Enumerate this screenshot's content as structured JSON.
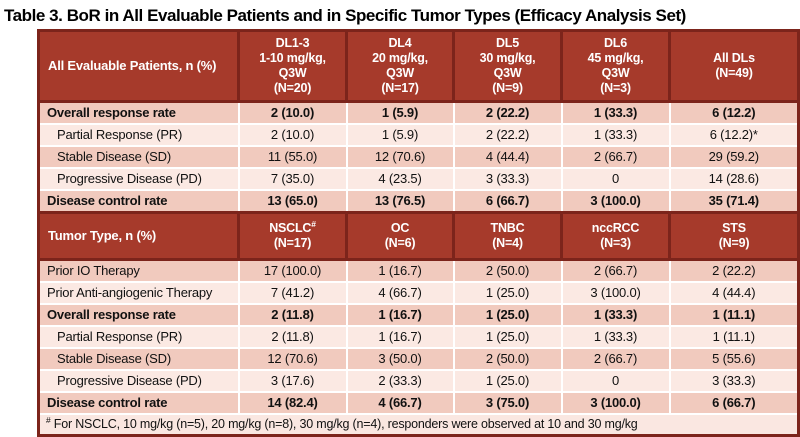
{
  "page": {
    "title": "Table 3. BoR in All Evaluable Patients and in Specific Tumor Types (Efficacy Analysis Set)"
  },
  "colors": {
    "header_red": "#A63A2B",
    "dark_border": "#7C241B",
    "band_dark": "#F1CABE",
    "band_light": "#FBE9E3",
    "footnote_bg": "#FAE7E1",
    "separator_white": "#FFFFFF",
    "header_text": "#FFFFFF",
    "body_text": "#111111"
  },
  "table": {
    "sections": [
      {
        "header_label": "All Evaluable Patients, n (%)",
        "columns": [
          {
            "lines": [
              "DL1-3",
              "1-10 mg/kg,",
              "Q3W",
              "(N=20)"
            ]
          },
          {
            "lines": [
              "DL4",
              "20 mg/kg,",
              "Q3W",
              "(N=17)"
            ]
          },
          {
            "lines": [
              "DL5",
              "30 mg/kg,",
              "Q3W",
              "(N=9)"
            ]
          },
          {
            "lines": [
              "DL6",
              "45 mg/kg,",
              "Q3W",
              "(N=3)"
            ]
          },
          {
            "lines": [
              "All DLs",
              "(N=49)"
            ]
          }
        ],
        "rows": [
          {
            "label": "Overall response rate",
            "bold": true,
            "indent": false,
            "cells": [
              "2 (10.0)",
              "1 (5.9)",
              "2 (22.2)",
              "1 (33.3)",
              "6 (12.2)"
            ]
          },
          {
            "label": "Partial Response (PR)",
            "bold": false,
            "indent": true,
            "cells": [
              "2 (10.0)",
              "1 (5.9)",
              "2 (22.2)",
              "1 (33.3)",
              "6 (12.2)*"
            ]
          },
          {
            "label": "Stable Disease (SD)",
            "bold": false,
            "indent": true,
            "cells": [
              "11 (55.0)",
              "12 (70.6)",
              "4 (44.4)",
              "2 (66.7)",
              "29 (59.2)"
            ]
          },
          {
            "label": "Progressive Disease (PD)",
            "bold": false,
            "indent": true,
            "cells": [
              "7 (35.0)",
              "4 (23.5)",
              "3 (33.3)",
              "0",
              "14 (28.6)"
            ]
          },
          {
            "label": "Disease control rate",
            "bold": true,
            "indent": false,
            "cells": [
              "13 (65.0)",
              "13 (76.5)",
              "6 (66.7)",
              "3 (100.0)",
              "35 (71.4)"
            ]
          }
        ]
      },
      {
        "header_label": "Tumor Type, n (%)",
        "columns": [
          {
            "lines": [
              "NSCLC",
              "(N=17)"
            ],
            "sup": "#"
          },
          {
            "lines": [
              "OC",
              "(N=6)"
            ]
          },
          {
            "lines": [
              "TNBC",
              "(N=4)"
            ]
          },
          {
            "lines": [
              "nccRCC",
              "(N=3)"
            ]
          },
          {
            "lines": [
              "STS",
              "(N=9)"
            ]
          }
        ],
        "rows": [
          {
            "label": "Prior IO Therapy",
            "bold": false,
            "indent": false,
            "cells": [
              "17 (100.0)",
              "1 (16.7)",
              "2 (50.0)",
              "2 (66.7)",
              "2 (22.2)"
            ]
          },
          {
            "label": "Prior Anti-angiogenic Therapy",
            "bold": false,
            "indent": false,
            "cells": [
              "7 (41.2)",
              "4 (66.7)",
              "1 (25.0)",
              "3 (100.0)",
              "4 (44.4)"
            ]
          },
          {
            "label": "Overall response rate",
            "bold": true,
            "indent": false,
            "cells": [
              "2 (11.8)",
              "1 (16.7)",
              "1 (25.0)",
              "1 (33.3)",
              "1 (11.1)"
            ]
          },
          {
            "label": "Partial Response (PR)",
            "bold": false,
            "indent": true,
            "cells": [
              "2 (11.8)",
              "1 (16.7)",
              "1 (25.0)",
              "1 (33.3)",
              "1 (11.1)"
            ]
          },
          {
            "label": "Stable Disease (SD)",
            "bold": false,
            "indent": true,
            "cells": [
              "12 (70.6)",
              "3 (50.0)",
              "2 (50.0)",
              "2 (66.7)",
              "5 (55.6)"
            ]
          },
          {
            "label": "Progressive Disease (PD)",
            "bold": false,
            "indent": true,
            "cells": [
              "3 (17.6)",
              "2 (33.3)",
              "1 (25.0)",
              "0",
              "3 (33.3)"
            ]
          },
          {
            "label": "Disease control rate",
            "bold": true,
            "indent": false,
            "cells": [
              "14 (82.4)",
              "4 (66.7)",
              "3 (75.0)",
              "3 (100.0)",
              "6 (66.7)"
            ]
          }
        ]
      }
    ],
    "footnote": {
      "marker": "#",
      "text": " For NSCLC, 10 mg/kg (n=5), 20 mg/kg (n=8), 30 mg/kg (n=4), responders were observed at 10 and 30 mg/kg"
    }
  }
}
